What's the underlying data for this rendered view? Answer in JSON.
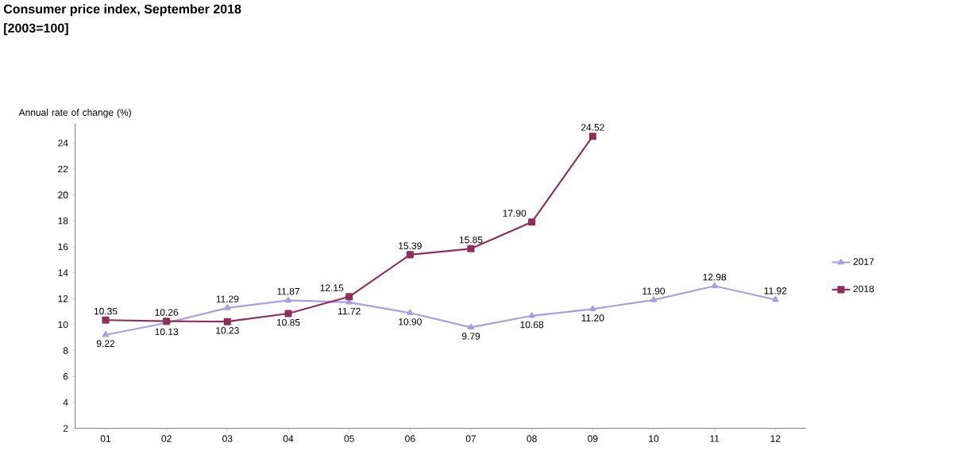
{
  "chart_data": {
    "type": "line",
    "title": "Consumer price index, September 2018",
    "subtitle": "[2003=100]",
    "ylabel": "Annual rate of change (%)",
    "categories": [
      "01",
      "02",
      "03",
      "04",
      "05",
      "06",
      "07",
      "08",
      "09",
      "10",
      "11",
      "12"
    ],
    "ylim": [
      2,
      25.5
    ],
    "yticks": [
      2,
      4,
      6,
      8,
      10,
      12,
      14,
      16,
      18,
      20,
      22,
      24
    ],
    "grid": false,
    "legend": "right",
    "series": [
      {
        "name": "2017",
        "color": "#a99fe0",
        "marker": "triangle",
        "values": [
          9.22,
          10.13,
          11.29,
          11.87,
          11.72,
          10.9,
          9.79,
          10.68,
          11.2,
          11.9,
          12.98,
          11.92
        ],
        "value_labels": [
          "9.22",
          "10.13",
          "11.29",
          "11.87",
          "11.72",
          "10.90",
          "9.79",
          "10.68",
          "11.20",
          "11.90",
          "12.98",
          "11.92"
        ]
      },
      {
        "name": "2018",
        "color": "#8c2f5c",
        "marker": "square",
        "values": [
          10.35,
          10.26,
          10.23,
          10.85,
          12.15,
          15.39,
          15.85,
          17.9,
          24.52,
          null,
          null,
          null
        ],
        "value_labels": [
          "10.35",
          "10.26",
          "10.23",
          "10.85",
          "12.15",
          "15.39",
          "15.85",
          "17.90",
          "24.52",
          null,
          null,
          null
        ]
      }
    ]
  }
}
